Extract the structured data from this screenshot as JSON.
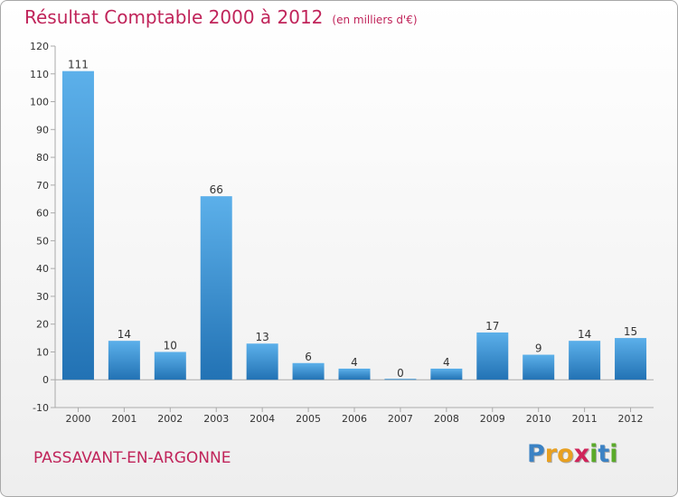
{
  "header": {
    "title": "Résultat Comptable 2000 à 2012",
    "subtitle": "(en milliers d'€)"
  },
  "footer": {
    "commune": "PASSAVANT-EN-ARGONNE",
    "logo_text": "Proxiti",
    "logo_letters": [
      {
        "ch": "P",
        "color": "#3b82c4"
      },
      {
        "ch": "r",
        "color": "#e8a020"
      },
      {
        "ch": "o",
        "color": "#e8a020"
      },
      {
        "ch": "x",
        "color": "#d0245a"
      },
      {
        "ch": "i",
        "color": "#5aaa2a"
      },
      {
        "ch": "t",
        "color": "#3b82c4"
      },
      {
        "ch": "i",
        "color": "#5aaa2a"
      }
    ]
  },
  "chart_data": {
    "type": "bar",
    "title": "Résultat Comptable 2000 à 2012",
    "ylabel": "(en milliers d'€)",
    "xlabel": "",
    "categories": [
      "2000",
      "2001",
      "2002",
      "2003",
      "2004",
      "2005",
      "2006",
      "2007",
      "2008",
      "2009",
      "2010",
      "2011",
      "2012"
    ],
    "values": [
      111,
      14,
      10,
      66,
      13,
      6,
      4,
      0,
      4,
      17,
      9,
      14,
      15
    ],
    "ylim": [
      -10,
      120
    ],
    "yticks": [
      -10,
      0,
      10,
      20,
      30,
      40,
      50,
      60,
      70,
      80,
      90,
      100,
      110,
      120
    ],
    "grid": false,
    "colors": {
      "bar_light": "#5cb0ea",
      "bar_dark": "#2272b4",
      "axis": "#aaaaaa"
    }
  }
}
